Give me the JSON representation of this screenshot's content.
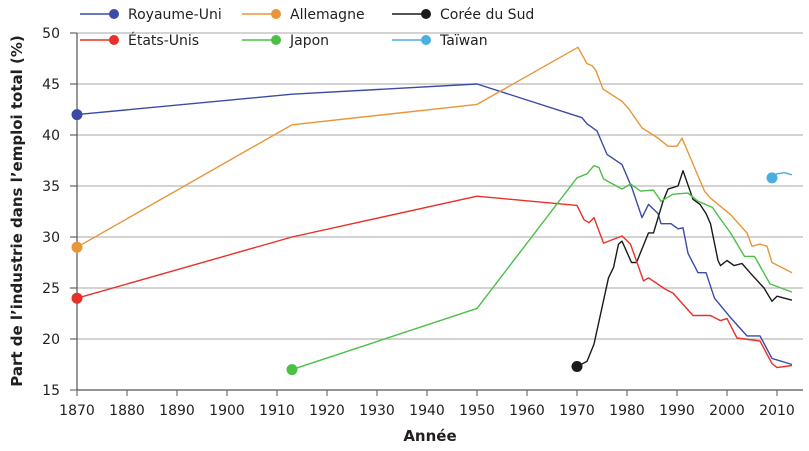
{
  "chart_data": {
    "type": "line",
    "title": "",
    "xlabel": "Année",
    "ylabel": "Part de l’industrie dans l’emploi total (%)",
    "xlim": [
      1870,
      2013
    ],
    "ylim": [
      15,
      50
    ],
    "xticks": [
      "1870",
      "1880",
      "1890",
      "1900",
      "1910",
      "1920",
      "1930",
      "1940",
      "1950",
      "1960",
      "1970",
      "1980",
      "1990",
      "2000",
      "2010"
    ],
    "yticks": [
      "15",
      "20",
      "25",
      "30",
      "35",
      "40",
      "45",
      "50"
    ],
    "grid": "horizontal",
    "legend_position": "top",
    "series": [
      {
        "name": "Royaume-Uni",
        "color": "#3b4ba6",
        "points": [
          [
            1870,
            42
          ],
          [
            1913,
            44
          ],
          [
            1950,
            45
          ],
          [
            1971,
            41.7
          ],
          [
            1972,
            41.1
          ],
          [
            1974,
            40.4
          ],
          [
            1976,
            38.1
          ],
          [
            1979,
            37.1
          ],
          [
            1981,
            34.8
          ],
          [
            1983,
            31.9
          ],
          [
            1984.3,
            33.2
          ],
          [
            1986.2,
            32.3
          ],
          [
            1986.8,
            31.3
          ],
          [
            1988.8,
            31.3
          ],
          [
            1990.2,
            30.8
          ],
          [
            1991.2,
            30.9
          ],
          [
            1992.2,
            28.4
          ],
          [
            1994.2,
            26.5
          ],
          [
            1995.8,
            26.5
          ],
          [
            1997.5,
            24.0
          ],
          [
            2000.7,
            22.1
          ],
          [
            2004,
            20.3
          ],
          [
            2006.6,
            20.3
          ],
          [
            2009,
            18.1
          ],
          [
            2013,
            17.5
          ]
        ]
      },
      {
        "name": "Allemagne",
        "color": "#e8963a",
        "points": [
          [
            1870,
            29
          ],
          [
            1913,
            41
          ],
          [
            1950,
            43
          ],
          [
            1970.2,
            48.6
          ],
          [
            1972,
            47.0
          ],
          [
            1973,
            46.8
          ],
          [
            1973.8,
            46.3
          ],
          [
            1975.2,
            44.5
          ],
          [
            1979,
            43.3
          ],
          [
            1980.3,
            42.6
          ],
          [
            1983,
            40.7
          ],
          [
            1986.2,
            39.7
          ],
          [
            1988.2,
            38.9
          ],
          [
            1990,
            38.9
          ],
          [
            1991,
            39.7
          ],
          [
            1995.5,
            34.5
          ],
          [
            1996.7,
            33.8
          ],
          [
            2000.7,
            32.2
          ],
          [
            2004,
            30.4
          ],
          [
            2005,
            29.1
          ],
          [
            2006.6,
            29.3
          ],
          [
            2008,
            29.1
          ],
          [
            2009,
            27.5
          ],
          [
            2013,
            26.5
          ]
        ]
      },
      {
        "name": "Corée du Sud",
        "color": "#1a1a1a",
        "points": [
          [
            1970,
            17.3
          ],
          [
            1972,
            17.8
          ],
          [
            1973.4,
            19.5
          ],
          [
            1976.3,
            26.0
          ],
          [
            1977.3,
            27.0
          ],
          [
            1978.3,
            29.3
          ],
          [
            1979,
            29.6
          ],
          [
            1980.9,
            27.5
          ],
          [
            1981.9,
            27.5
          ],
          [
            1984.3,
            30.4
          ],
          [
            1985.3,
            30.4
          ],
          [
            1987.2,
            33.5
          ],
          [
            1988.2,
            34.7
          ],
          [
            1990.2,
            35.0
          ],
          [
            1991.2,
            36.5
          ],
          [
            1993.2,
            33.7
          ],
          [
            1994.6,
            33.2
          ],
          [
            1995.8,
            32.3
          ],
          [
            1996.7,
            31.3
          ],
          [
            1998.2,
            27.7
          ],
          [
            1998.7,
            27.2
          ],
          [
            2000,
            27.7
          ],
          [
            2001.4,
            27.2
          ],
          [
            2003,
            27.4
          ],
          [
            2004.6,
            26.5
          ],
          [
            2007.4,
            25.0
          ],
          [
            2009,
            23.7
          ],
          [
            2010,
            24.2
          ],
          [
            2013,
            23.8
          ]
        ]
      },
      {
        "name": "États-Unis",
        "color": "#e8302a",
        "points": [
          [
            1870,
            24
          ],
          [
            1913,
            30
          ],
          [
            1950,
            34
          ],
          [
            1970,
            33.1
          ],
          [
            1971.4,
            31.7
          ],
          [
            1972.4,
            31.4
          ],
          [
            1973.4,
            31.9
          ],
          [
            1975.3,
            29.4
          ],
          [
            1979,
            30.1
          ],
          [
            1980.7,
            29.3
          ],
          [
            1983.3,
            25.7
          ],
          [
            1984.3,
            26.0
          ],
          [
            1987.6,
            24.9
          ],
          [
            1989.2,
            24.5
          ],
          [
            1993.2,
            22.3
          ],
          [
            1996.7,
            22.3
          ],
          [
            1998.7,
            21.8
          ],
          [
            2000,
            22.0
          ],
          [
            2002,
            20.1
          ],
          [
            2006.6,
            19.8
          ],
          [
            2009,
            17.6
          ],
          [
            2010,
            17.2
          ],
          [
            2013,
            17.4
          ]
        ]
      },
      {
        "name": "Japon",
        "color": "#4cbf48",
        "points": [
          [
            1913,
            17
          ],
          [
            1950,
            23
          ],
          [
            1970,
            35.8
          ],
          [
            1972,
            36.2
          ],
          [
            1973.4,
            37.0
          ],
          [
            1974.4,
            36.8
          ],
          [
            1975.3,
            35.7
          ],
          [
            1979,
            34.7
          ],
          [
            1980.7,
            35.2
          ],
          [
            1982.7,
            34.5
          ],
          [
            1985.3,
            34.6
          ],
          [
            1986.8,
            33.5
          ],
          [
            1989.2,
            34.2
          ],
          [
            1992.2,
            34.3
          ],
          [
            1994.2,
            33.5
          ],
          [
            1997.1,
            32.9
          ],
          [
            1998.2,
            32.1
          ],
          [
            2000.7,
            30.4
          ],
          [
            2003.5,
            28.1
          ],
          [
            2005.5,
            28.1
          ],
          [
            2008.6,
            25.4
          ],
          [
            2013,
            24.6
          ]
        ]
      },
      {
        "name": "Taïwan",
        "color": "#4aaee3",
        "points": [
          [
            2009,
            35.8
          ],
          [
            2010,
            36.2
          ],
          [
            2011.5,
            36.3
          ],
          [
            2013,
            36.1
          ]
        ]
      }
    ]
  }
}
